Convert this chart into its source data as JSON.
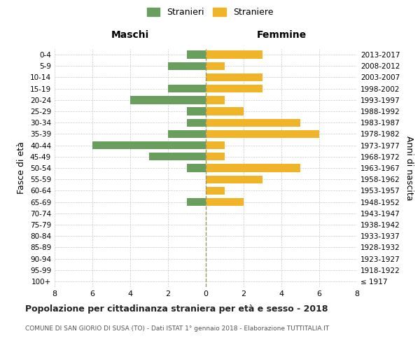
{
  "age_groups": [
    "100+",
    "95-99",
    "90-94",
    "85-89",
    "80-84",
    "75-79",
    "70-74",
    "65-69",
    "60-64",
    "55-59",
    "50-54",
    "45-49",
    "40-44",
    "35-39",
    "30-34",
    "25-29",
    "20-24",
    "15-19",
    "10-14",
    "5-9",
    "0-4"
  ],
  "birth_years": [
    "≤ 1917",
    "1918-1922",
    "1923-1927",
    "1928-1932",
    "1933-1937",
    "1938-1942",
    "1943-1947",
    "1948-1952",
    "1953-1957",
    "1958-1962",
    "1963-1967",
    "1968-1972",
    "1973-1977",
    "1978-1982",
    "1983-1987",
    "1988-1992",
    "1993-1997",
    "1998-2002",
    "2003-2007",
    "2008-2012",
    "2013-2017"
  ],
  "males": [
    0,
    0,
    0,
    0,
    0,
    0,
    0,
    1,
    0,
    0,
    1,
    3,
    6,
    2,
    1,
    1,
    4,
    2,
    0,
    2,
    1
  ],
  "females": [
    0,
    0,
    0,
    0,
    0,
    0,
    0,
    2,
    1,
    3,
    5,
    1,
    1,
    6,
    5,
    2,
    1,
    3,
    3,
    1,
    3
  ],
  "male_color": "#6a9e5f",
  "female_color": "#f0b429",
  "grid_color": "#cccccc",
  "center_line_color": "#999966",
  "title": "Popolazione per cittadinanza straniera per età e sesso - 2018",
  "subtitle": "COMUNE DI SAN GIORIO DI SUSA (TO) - Dati ISTAT 1° gennaio 2018 - Elaborazione TUTTITALIA.IT",
  "xlabel_left": "Maschi",
  "xlabel_right": "Femmine",
  "ylabel": "Fasce di età",
  "ylabel_right": "Anni di nascita",
  "legend_male": "Stranieri",
  "legend_female": "Straniere",
  "xlim": 8,
  "xticks": [
    -8,
    -6,
    -4,
    -2,
    0,
    2,
    4,
    6,
    8
  ],
  "xticklabels": [
    "8",
    "6",
    "4",
    "2",
    "0",
    "2",
    "4",
    "6",
    "8"
  ]
}
